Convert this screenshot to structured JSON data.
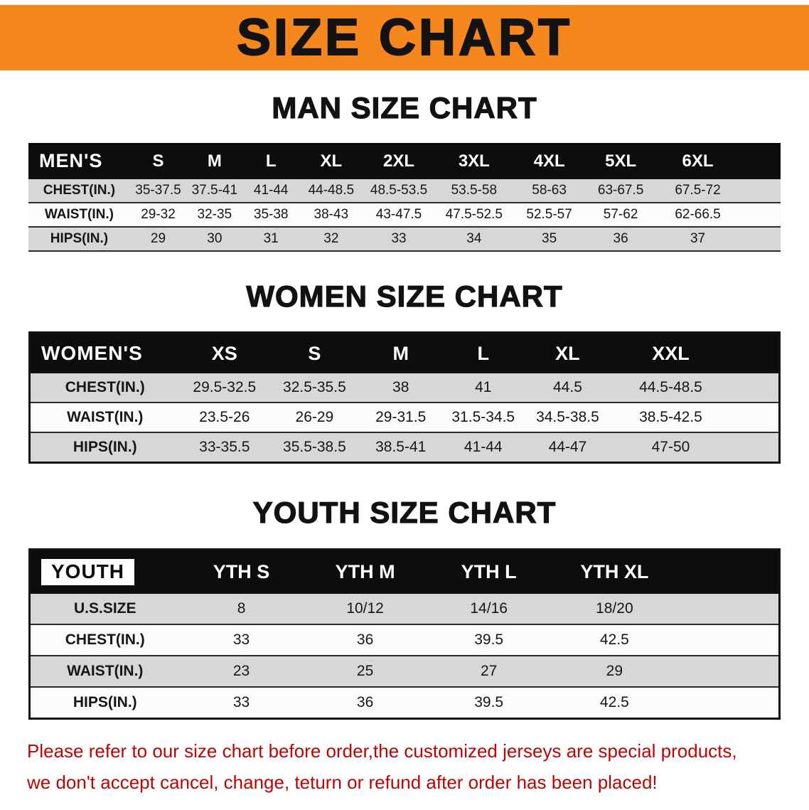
{
  "banner": {
    "title": "SIZE CHART"
  },
  "colors": {
    "banner_bg": "#f6871d",
    "header_bg": "#0d0d0d",
    "row_alt": "#d7d7d7",
    "row_base": "#fbfbfb",
    "title_color": "#131313",
    "disclaimer_red": "#bb0404"
  },
  "sections": [
    {
      "id": "men",
      "heading": "MAN SIZE CHART",
      "table": {
        "label": "MEN'S",
        "columns": [
          "S",
          "M",
          "L",
          "XL",
          "2XL",
          "3XL",
          "4XL",
          "5XL",
          "6XL"
        ],
        "rows": [
          {
            "label": "CHEST(IN.)",
            "values": [
              "35-37.5",
              "37.5-41",
              "41-44",
              "44-48.5",
              "48.5-53.5",
              "53.5-58",
              "58-63",
              "63-67.5",
              "67.5-72"
            ]
          },
          {
            "label": "WAIST(IN.)",
            "values": [
              "29-32",
              "32-35",
              "35-38",
              "38-43",
              "43-47.5",
              "47.5-52.5",
              "52.5-57",
              "57-62",
              "62-66.5"
            ]
          },
          {
            "label": "HIPS(IN.)",
            "values": [
              "29",
              "30",
              "31",
              "32",
              "33",
              "34",
              "35",
              "36",
              "37"
            ]
          }
        ]
      }
    },
    {
      "id": "women",
      "heading": "WOMEN SIZE CHART",
      "table": {
        "label": "WOMEN'S",
        "columns": [
          "XS",
          "S",
          "M",
          "L",
          "XL",
          "XXL"
        ],
        "rows": [
          {
            "label": "CHEST(IN.)",
            "values": [
              "29.5-32.5",
              "32.5-35.5",
              "38",
              "41",
              "44.5",
              "44.5-48.5"
            ]
          },
          {
            "label": "WAIST(IN.)",
            "values": [
              "23.5-26",
              "26-29",
              "29-31.5",
              "31.5-34.5",
              "34.5-38.5",
              "38.5-42.5"
            ]
          },
          {
            "label": "HIPS(IN.)",
            "values": [
              "33-35.5",
              "35.5-38.5",
              "38.5-41",
              "41-44",
              "44-47",
              "47-50"
            ]
          }
        ]
      }
    },
    {
      "id": "youth",
      "heading": "YOUTH SIZE CHART",
      "table": {
        "label": "YOUTH",
        "columns": [
          "YTH S",
          "YTH M",
          "YTH L",
          "YTH XL"
        ],
        "rows": [
          {
            "label": "U.S.SIZE",
            "values": [
              "8",
              "10/12",
              "14/16",
              "18/20"
            ]
          },
          {
            "label": "CHEST(IN.)",
            "values": [
              "33",
              "36",
              "39.5",
              "42.5"
            ]
          },
          {
            "label": "WAIST(IN.)",
            "values": [
              "23",
              "25",
              "27",
              "29"
            ]
          },
          {
            "label": "HIPS(IN.)",
            "values": [
              "33",
              "36",
              "39.5",
              "42.5"
            ]
          }
        ]
      }
    }
  ],
  "disclaimer": {
    "lines": [
      "Please refer to our size chart before order,the customized jerseys are special products,",
      "we don't accept cancel, change, teturn or refund after order has been placed!"
    ]
  }
}
